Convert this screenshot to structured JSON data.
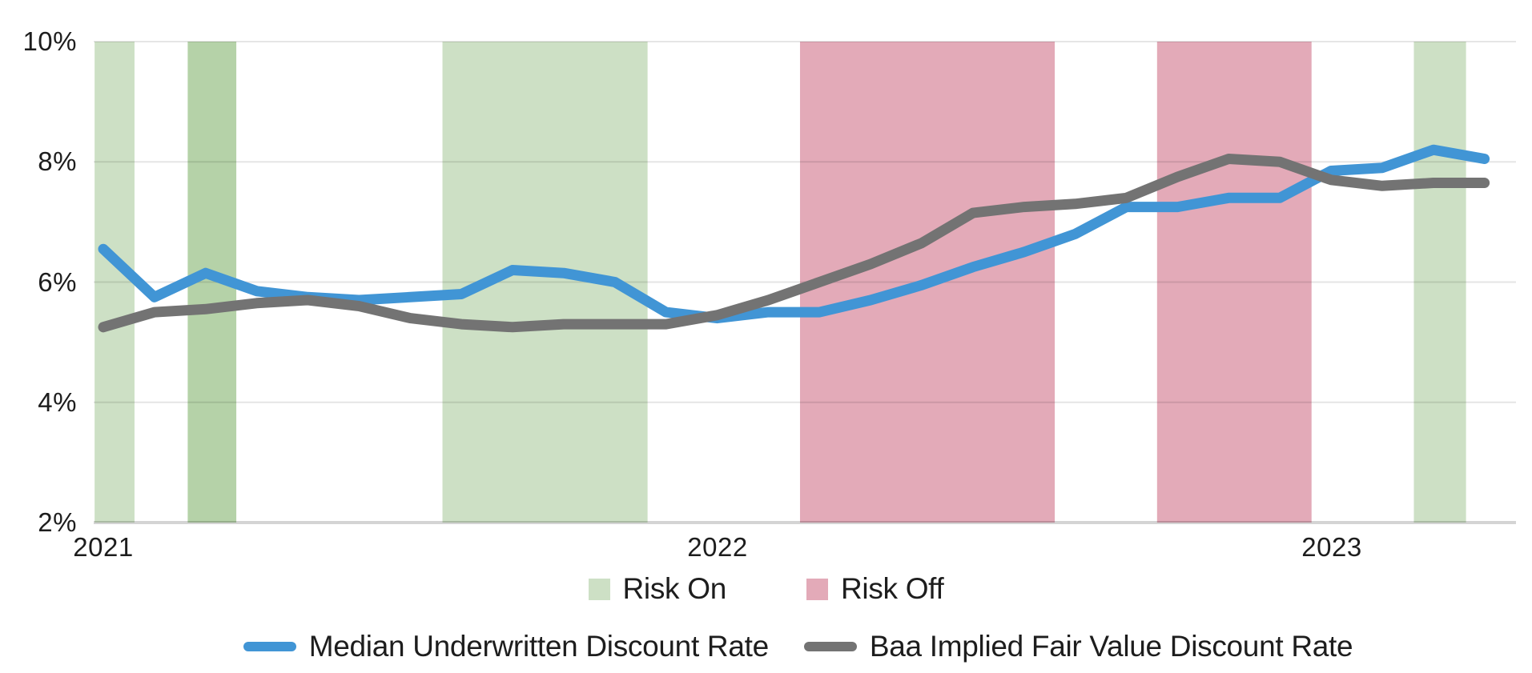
{
  "page": {
    "background": "#ffffff"
  },
  "chart_data": {
    "type": "line",
    "title": "",
    "grid": true,
    "legend_position": "bottom",
    "x_axis": {
      "tick_labels": [
        "2021",
        "2022",
        "2023"
      ],
      "tick_month_index": [
        0,
        12,
        24
      ]
    },
    "y_axis": {
      "unit": "%",
      "min": 2,
      "max": 10,
      "tick_values": [
        10,
        8,
        6,
        4,
        2
      ],
      "tick_labels": [
        "10%",
        "8%",
        "6%",
        "4%",
        "2%"
      ]
    },
    "months": [
      "Jan 2021",
      "Feb 2021",
      "Mar 2021",
      "Apr 2021",
      "May 2021",
      "Jun 2021",
      "Jul 2021",
      "Aug 2021",
      "Sep 2021",
      "Oct 2021",
      "Nov 2021",
      "Dec 2021",
      "Jan 2022",
      "Feb 2022",
      "Mar 2022",
      "Apr 2022",
      "May 2022",
      "Jun 2022",
      "Jul 2022",
      "Aug 2022",
      "Sep 2022",
      "Oct 2022",
      "Nov 2022",
      "Dec 2022",
      "Jan 2023",
      "Feb 2023",
      "Mar 2023",
      "Apr 2023"
    ],
    "series": [
      {
        "name": "Median Underwritten Discount Rate",
        "color": "#4195d5",
        "values": [
          6.55,
          5.75,
          6.15,
          5.85,
          5.75,
          5.7,
          5.75,
          5.8,
          6.2,
          6.15,
          6.0,
          5.5,
          5.4,
          5.5,
          5.5,
          5.7,
          5.95,
          6.25,
          6.5,
          6.8,
          7.25,
          7.25,
          7.4,
          7.4,
          7.85,
          7.9,
          8.2,
          8.05
        ]
      },
      {
        "name": "Baa Implied Fair Value Discount Rate",
        "color": "#737373",
        "values": [
          5.25,
          5.5,
          5.55,
          5.65,
          5.7,
          5.6,
          5.4,
          5.3,
          5.25,
          5.3,
          5.3,
          5.3,
          5.45,
          5.7,
          6.0,
          6.3,
          6.65,
          7.15,
          7.25,
          7.3,
          7.4,
          7.75,
          8.05,
          8.0,
          7.7,
          7.6,
          7.65,
          7.65
        ]
      }
    ],
    "bands": [
      {
        "label": "Risk On",
        "type": "risk_on",
        "start_month": -0.17,
        "end_month": 0.61,
        "color": "#cde0c5"
      },
      {
        "label": "Risk On",
        "type": "risk_on",
        "start_month": 1.65,
        "end_month": 2.6,
        "color": "#b5d2a8"
      },
      {
        "label": "Risk On",
        "type": "risk_on",
        "start_month": 6.63,
        "end_month": 10.64,
        "color": "#cde0c5"
      },
      {
        "label": "Risk Off",
        "type": "risk_off",
        "start_month": 13.62,
        "end_month": 18.6,
        "color": "#e3aab8"
      },
      {
        "label": "Risk Off",
        "type": "risk_off",
        "start_month": 20.6,
        "end_month": 23.62,
        "color": "#e3aab8"
      },
      {
        "label": "Risk On",
        "type": "risk_on",
        "start_month": 25.62,
        "end_month": 26.64,
        "color": "#cde0c5"
      }
    ],
    "legend": {
      "bands": [
        {
          "label": "Risk On",
          "color": "#cde0c5"
        },
        {
          "label": "Risk Off",
          "color": "#e3aab8"
        }
      ],
      "series": [
        {
          "label": "Median Underwritten Discount Rate",
          "color": "#4195d5"
        },
        {
          "label": "Baa Implied Fair Value Discount Rate",
          "color": "#737373"
        }
      ]
    }
  }
}
